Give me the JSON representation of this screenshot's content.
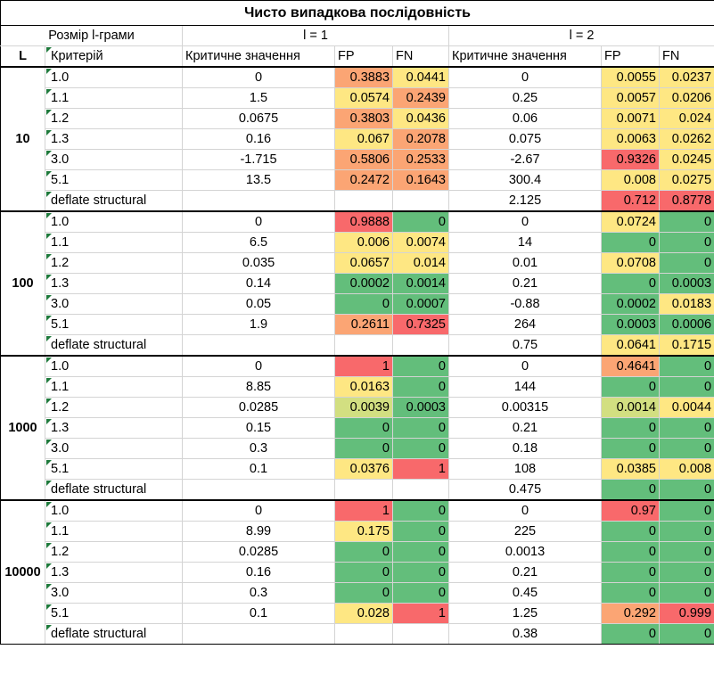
{
  "title": "Чисто випадкова послідовність",
  "header": {
    "size_label": "Розмір l-грами",
    "l1": "l = 1",
    "l2": "l = 2",
    "L": "L",
    "criterion": "Критерій",
    "crit_value": "Критичне значення",
    "fp": "FP",
    "fn": "FN"
  },
  "colors": {
    "red": "#f8696b",
    "orange": "#fba574",
    "yellow": "#fee783",
    "yellowgreen": "#d2df81",
    "green": "#63be7b",
    "white": "#ffffff"
  },
  "groups": [
    {
      "L": "10",
      "rows": [
        {
          "crit": "1.0",
          "cv1": "0",
          "fp1": "0.3883",
          "fn1": "0.0441",
          "cv2": "0",
          "fp2": "0.0055",
          "fn2": "0.0237",
          "c": [
            "orange",
            "yellow",
            "yellow",
            "yellow"
          ]
        },
        {
          "crit": "1.1",
          "cv1": "1.5",
          "fp1": "0.0574",
          "fn1": "0.2439",
          "cv2": "0.25",
          "fp2": "0.0057",
          "fn2": "0.0206",
          "c": [
            "yellow",
            "orange",
            "yellow",
            "yellow"
          ]
        },
        {
          "crit": "1.2",
          "cv1": "0.0675",
          "fp1": "0.3803",
          "fn1": "0.0436",
          "cv2": "0.06",
          "fp2": "0.0071",
          "fn2": "0.024",
          "c": [
            "orange",
            "yellow",
            "yellow",
            "yellow"
          ]
        },
        {
          "crit": "1.3",
          "cv1": "0.16",
          "fp1": "0.067",
          "fn1": "0.2078",
          "cv2": "0.075",
          "fp2": "0.0063",
          "fn2": "0.0262",
          "c": [
            "yellow",
            "orange",
            "yellow",
            "yellow"
          ]
        },
        {
          "crit": "3.0",
          "cv1": "-1.715",
          "fp1": "0.5806",
          "fn1": "0.2533",
          "cv2": "-2.67",
          "fp2": "0.9326",
          "fn2": "0.0245",
          "c": [
            "orange",
            "orange",
            "red",
            "yellow"
          ]
        },
        {
          "crit": "5.1",
          "cv1": "13.5",
          "fp1": "0.2472",
          "fn1": "0.1643",
          "cv2": "300.4",
          "fp2": "0.008",
          "fn2": "0.0275",
          "c": [
            "orange",
            "orange",
            "yellow",
            "yellow"
          ]
        },
        {
          "crit": "deflate structural",
          "cv1": "",
          "fp1": "",
          "fn1": "",
          "cv2": "2.125",
          "fp2": "0.712",
          "fn2": "0.8778",
          "c": [
            "white",
            "white",
            "red",
            "red"
          ]
        }
      ]
    },
    {
      "L": "100",
      "rows": [
        {
          "crit": "1.0",
          "cv1": "0",
          "fp1": "0.9888",
          "fn1": "0",
          "cv2": "0",
          "fp2": "0.0724",
          "fn2": "0",
          "c": [
            "red",
            "green",
            "yellow",
            "green"
          ]
        },
        {
          "crit": "1.1",
          "cv1": "6.5",
          "fp1": "0.006",
          "fn1": "0.0074",
          "cv2": "14",
          "fp2": "0",
          "fn2": "0",
          "c": [
            "yellow",
            "yellow",
            "green",
            "green"
          ]
        },
        {
          "crit": "1.2",
          "cv1": "0.035",
          "fp1": "0.0657",
          "fn1": "0.014",
          "cv2": "0.01",
          "fp2": "0.0708",
          "fn2": "0",
          "c": [
            "yellow",
            "yellow",
            "yellow",
            "green"
          ]
        },
        {
          "crit": "1.3",
          "cv1": "0.14",
          "fp1": "0.0002",
          "fn1": "0.0014",
          "cv2": "0.21",
          "fp2": "0",
          "fn2": "0.0003",
          "c": [
            "green",
            "green",
            "green",
            "green"
          ]
        },
        {
          "crit": "3.0",
          "cv1": "0.05",
          "fp1": "0",
          "fn1": "0.0007",
          "cv2": "-0.88",
          "fp2": "0.0002",
          "fn2": "0.0183",
          "c": [
            "green",
            "green",
            "green",
            "yellow"
          ]
        },
        {
          "crit": "5.1",
          "cv1": "1.9",
          "fp1": "0.2611",
          "fn1": "0.7325",
          "cv2": "264",
          "fp2": "0.0003",
          "fn2": "0.0006",
          "c": [
            "orange",
            "red",
            "green",
            "green"
          ]
        },
        {
          "crit": "deflate structural",
          "cv1": "",
          "fp1": "",
          "fn1": "",
          "cv2": "0.75",
          "fp2": "0.0641",
          "fn2": "0.1715",
          "c": [
            "white",
            "white",
            "yellow",
            "yellow"
          ]
        }
      ]
    },
    {
      "L": "1000",
      "rows": [
        {
          "crit": "1.0",
          "cv1": "0",
          "fp1": "1",
          "fn1": "0",
          "cv2": "0",
          "fp2": "0.4641",
          "fn2": "0",
          "c": [
            "red",
            "green",
            "orange",
            "green"
          ]
        },
        {
          "crit": "1.1",
          "cv1": "8.85",
          "fp1": "0.0163",
          "fn1": "0",
          "cv2": "144",
          "fp2": "0",
          "fn2": "0",
          "c": [
            "yellow",
            "green",
            "green",
            "green"
          ]
        },
        {
          "crit": "1.2",
          "cv1": "0.0285",
          "fp1": "0.0039",
          "fn1": "0.0003",
          "cv2": "0.00315",
          "fp2": "0.0014",
          "fn2": "0.0044",
          "c": [
            "yellowgreen",
            "green",
            "yellowgreen",
            "yellow"
          ]
        },
        {
          "crit": "1.3",
          "cv1": "0.15",
          "fp1": "0",
          "fn1": "0",
          "cv2": "0.21",
          "fp2": "0",
          "fn2": "0",
          "c": [
            "green",
            "green",
            "green",
            "green"
          ]
        },
        {
          "crit": "3.0",
          "cv1": "0.3",
          "fp1": "0",
          "fn1": "0",
          "cv2": "0.18",
          "fp2": "0",
          "fn2": "0",
          "c": [
            "green",
            "green",
            "green",
            "green"
          ]
        },
        {
          "crit": "5.1",
          "cv1": "0.1",
          "fp1": "0.0376",
          "fn1": "1",
          "cv2": "108",
          "fp2": "0.0385",
          "fn2": "0.008",
          "c": [
            "yellow",
            "red",
            "yellow",
            "yellow"
          ]
        },
        {
          "crit": "deflate structural",
          "cv1": "",
          "fp1": "",
          "fn1": "",
          "cv2": "0.475",
          "fp2": "0",
          "fn2": "0",
          "c": [
            "white",
            "white",
            "green",
            "green"
          ]
        }
      ]
    },
    {
      "L": "10000",
      "rows": [
        {
          "crit": "1.0",
          "cv1": "0",
          "fp1": "1",
          "fn1": "0",
          "cv2": "0",
          "fp2": "0.97",
          "fn2": "0",
          "c": [
            "red",
            "green",
            "red",
            "green"
          ]
        },
        {
          "crit": "1.1",
          "cv1": "8.99",
          "fp1": "0.175",
          "fn1": "0",
          "cv2": "225",
          "fp2": "0",
          "fn2": "0",
          "c": [
            "yellow",
            "green",
            "green",
            "green"
          ]
        },
        {
          "crit": "1.2",
          "cv1": "0.0285",
          "fp1": "0",
          "fn1": "0",
          "cv2": "0.0013",
          "fp2": "0",
          "fn2": "0",
          "c": [
            "green",
            "green",
            "green",
            "green"
          ]
        },
        {
          "crit": "1.3",
          "cv1": "0.16",
          "fp1": "0",
          "fn1": "0",
          "cv2": "0.21",
          "fp2": "0",
          "fn2": "0",
          "c": [
            "green",
            "green",
            "green",
            "green"
          ]
        },
        {
          "crit": "3.0",
          "cv1": "0.3",
          "fp1": "0",
          "fn1": "0",
          "cv2": "0.45",
          "fp2": "0",
          "fn2": "0",
          "c": [
            "green",
            "green",
            "green",
            "green"
          ]
        },
        {
          "crit": "5.1",
          "cv1": "0.1",
          "fp1": "0.028",
          "fn1": "1",
          "cv2": "1.25",
          "fp2": "0.292",
          "fn2": "0.999",
          "c": [
            "yellow",
            "red",
            "orange",
            "red"
          ]
        },
        {
          "crit": "deflate structural",
          "cv1": "",
          "fp1": "",
          "fn1": "",
          "cv2": "0.38",
          "fp2": "0",
          "fn2": "0",
          "c": [
            "white",
            "white",
            "green",
            "green"
          ]
        }
      ]
    }
  ]
}
